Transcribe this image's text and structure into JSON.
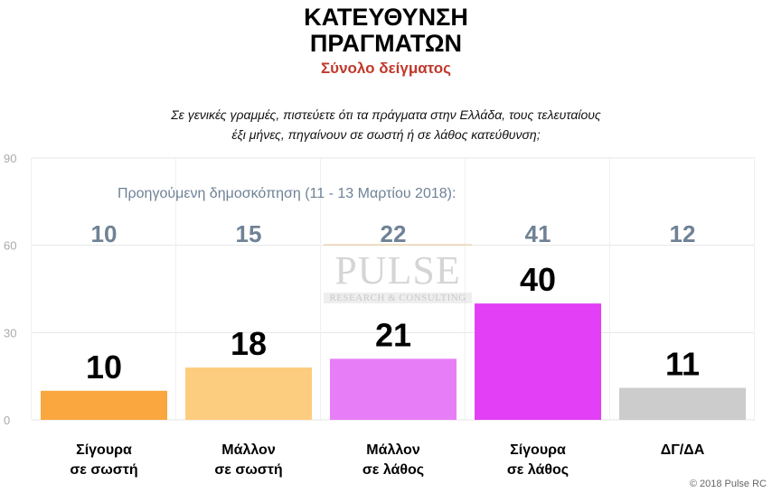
{
  "title_line1": "ΚΑΤΕΥΘΥΝΣΗ",
  "title_line2": "ΠΡΑΓΜΑΤΩΝ",
  "subtitle": "Σύνολο δείγματος",
  "question_line1": "Σε γενικές γραμμές, πιστεύετε ότι τα πράγματα στην Ελλάδα, τους τελευταίους",
  "question_line2": "έξι μήνες, πηγαίνουν σε σωστή ή σε λάθος κατεύθυνση;",
  "previous_poll_label": "Προηγούμενη δημοσκόπηση (11 - 13 Μαρτίου 2018):",
  "watermark": {
    "main": "PULSE",
    "sub": "RESEARCH & CONSULTING"
  },
  "footer": "© 2018 Pulse RC",
  "colors": {
    "bars": [
      "#f9a73e",
      "#fdcd7f",
      "#e87ef7",
      "#e33ff6",
      "#cccccc"
    ],
    "previous_values": "#6f8296",
    "grid": "#e6e6e6",
    "subtitle": "#c0392b"
  },
  "chart_data": {
    "type": "bar",
    "categories": [
      [
        "Σίγουρα",
        "σε σωστή"
      ],
      [
        "Μάλλον",
        "σε σωστή"
      ],
      [
        "Μάλλον",
        "σε λάθος"
      ],
      [
        "Σίγουρα",
        "σε λάθος"
      ],
      [
        "ΔΓ/ΔΑ"
      ]
    ],
    "values": [
      10,
      18,
      21,
      40,
      11
    ],
    "previous_values": [
      10,
      15,
      22,
      41,
      12
    ],
    "yticks": [
      0,
      30,
      60,
      90
    ],
    "ylim": [
      0,
      90
    ],
    "grid": true
  }
}
